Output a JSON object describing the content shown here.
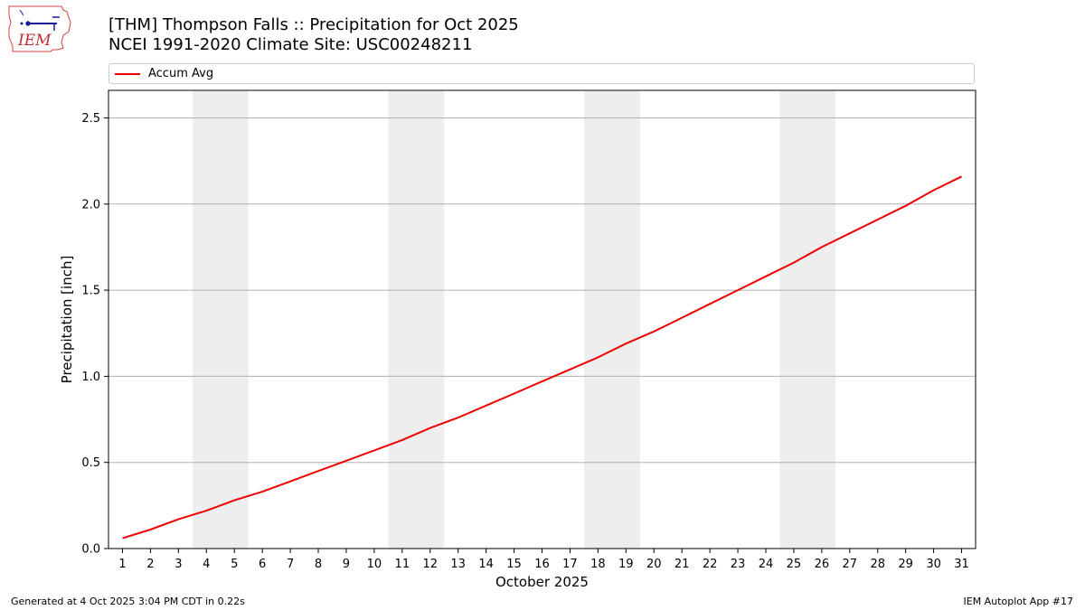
{
  "logo": {
    "text": "IEM"
  },
  "footer": {
    "left": "Generated at 4 Oct 2025 3:04 PM CDT in 0.22s",
    "right": "IEM Autoplot App #17"
  },
  "colors": {
    "series": "#ee0000",
    "weekend_band": "#eeeeee",
    "grid": "#b0b0b0"
  },
  "chart_data": {
    "type": "line",
    "title": "[THM] Thompson Falls :: Precipitation for Oct 2025",
    "subtitle": "NCEI 1991-2020 Climate Site: USC00248211",
    "xlabel": "October 2025",
    "ylabel": "Precipitation [inch]",
    "xlim": [
      0.5,
      31.5
    ],
    "ylim": [
      0,
      2.66
    ],
    "x_ticks": [
      1,
      2,
      3,
      4,
      5,
      6,
      7,
      8,
      9,
      10,
      11,
      12,
      13,
      14,
      15,
      16,
      17,
      18,
      19,
      20,
      21,
      22,
      23,
      24,
      25,
      26,
      27,
      28,
      29,
      30,
      31
    ],
    "x_tick_labels": [
      "1",
      "2",
      "3",
      "4",
      "5",
      "6",
      "7",
      "8",
      "9",
      "10",
      "11",
      "12",
      "13",
      "14",
      "15",
      "16",
      "17",
      "18",
      "19",
      "20",
      "21",
      "22",
      "23",
      "24",
      "25",
      "26",
      "27",
      "28",
      "29",
      "30",
      "31"
    ],
    "y_ticks": [
      0,
      0.5,
      1.0,
      1.5,
      2.0,
      2.5
    ],
    "y_tick_labels": [
      "0.0",
      "0.5",
      "1.0",
      "1.5",
      "2.0",
      "2.5"
    ],
    "grid": "horizontal",
    "legend": "top",
    "weekend_bands": [
      [
        3.5,
        5.5
      ],
      [
        10.5,
        12.5
      ],
      [
        17.5,
        19.5
      ],
      [
        24.5,
        26.5
      ]
    ],
    "series": [
      {
        "name": "Accum Avg",
        "x": [
          1,
          2,
          3,
          4,
          5,
          6,
          7,
          8,
          9,
          10,
          11,
          12,
          13,
          14,
          15,
          16,
          17,
          18,
          19,
          20,
          21,
          22,
          23,
          24,
          25,
          26,
          27,
          28,
          29,
          30,
          31
        ],
        "values": [
          0.06,
          0.11,
          0.17,
          0.22,
          0.28,
          0.33,
          0.39,
          0.45,
          0.51,
          0.57,
          0.63,
          0.7,
          0.76,
          0.83,
          0.9,
          0.97,
          1.04,
          1.11,
          1.19,
          1.26,
          1.34,
          1.42,
          1.5,
          1.58,
          1.66,
          1.75,
          1.83,
          1.91,
          1.99,
          2.08,
          2.16
        ]
      }
    ]
  }
}
